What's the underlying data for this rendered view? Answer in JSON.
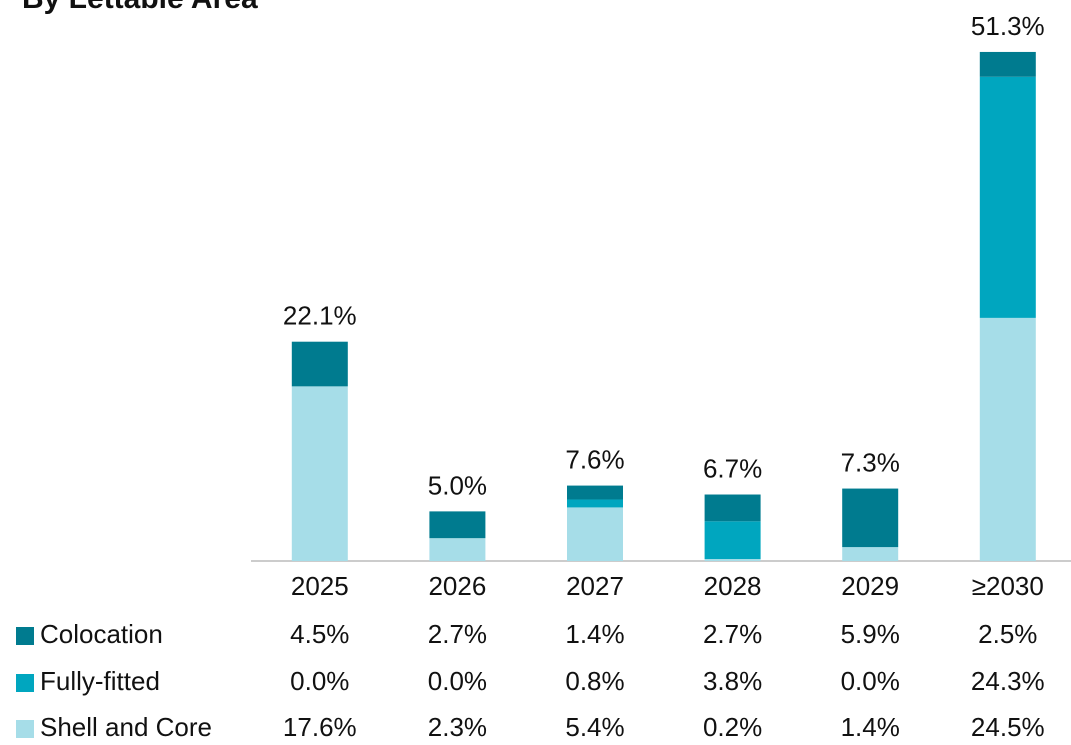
{
  "chart_data": {
    "type": "stacked_bar",
    "title": "By Lettable Area",
    "categories": [
      "2025",
      "2026",
      "2027",
      "2028",
      "2029",
      "≥2030"
    ],
    "series": [
      {
        "name": "Colocation",
        "color": "#007b8f",
        "values": [
          4.5,
          2.7,
          1.4,
          2.7,
          5.9,
          2.5
        ],
        "value_labels": [
          "4.5%",
          "2.7%",
          "1.4%",
          "2.7%",
          "5.9%",
          "2.5%"
        ]
      },
      {
        "name": "Fully-fitted",
        "color": "#00a6bf",
        "values": [
          0.0,
          0.0,
          0.8,
          3.8,
          0.0,
          24.3
        ],
        "value_labels": [
          "0.0%",
          "0.0%",
          "0.8%",
          "3.8%",
          "0.0%",
          "24.3%"
        ]
      },
      {
        "name": "Shell and Core",
        "color": "#a6dde8",
        "values": [
          17.6,
          2.3,
          5.4,
          0.2,
          1.4,
          24.5
        ],
        "value_labels": [
          "17.6%",
          "2.3%",
          "5.4%",
          "0.2%",
          "1.4%",
          "24.5%"
        ]
      }
    ],
    "totals": [
      22.1,
      5.0,
      7.6,
      6.7,
      7.3,
      51.3
    ],
    "total_labels": [
      "22.1%",
      "5.0%",
      "7.6%",
      "6.7%",
      "7.3%",
      "51.3%"
    ],
    "ylim": [
      0,
      52
    ]
  }
}
